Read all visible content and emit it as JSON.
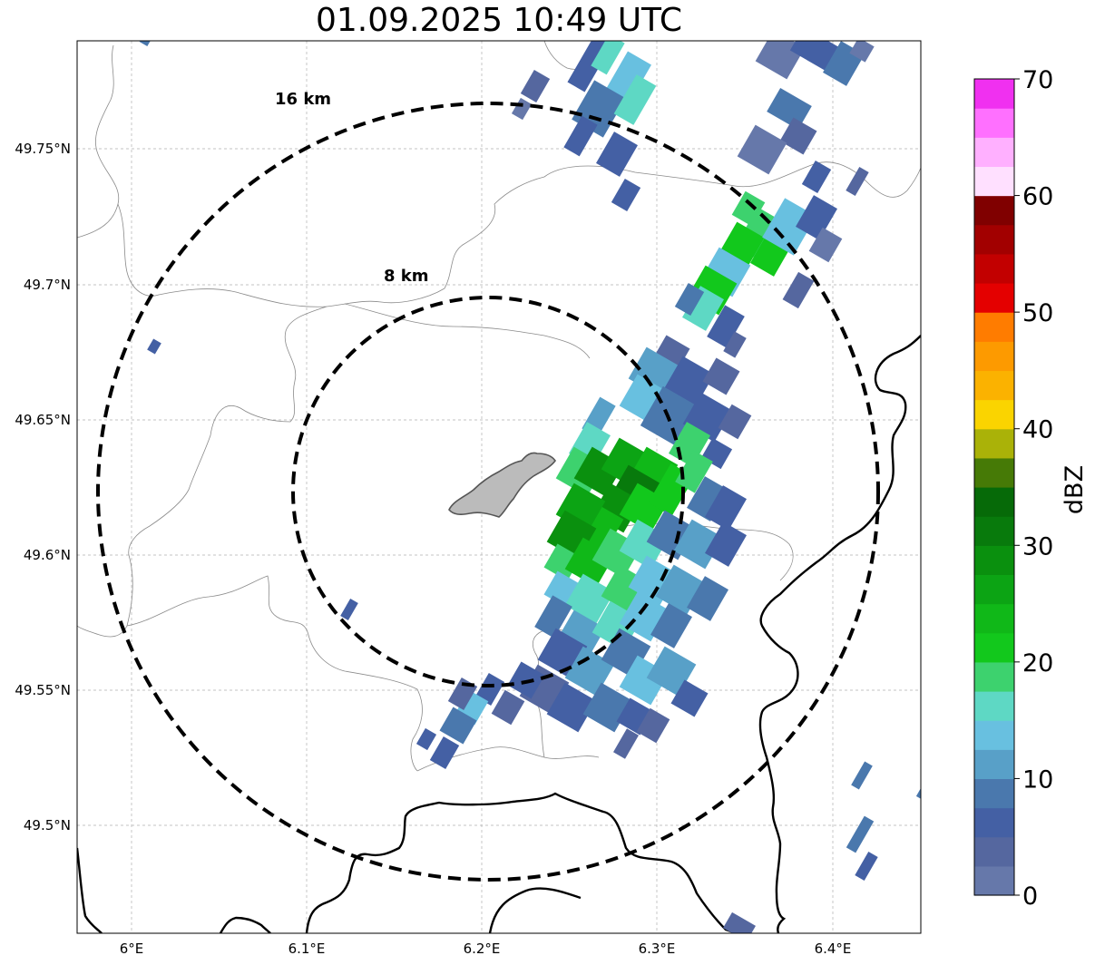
{
  "title": "01.09.2025 10:49 UTC",
  "map": {
    "lon_ticks": [
      "6°E",
      "6.1°E",
      "6.2°E",
      "6.3°E",
      "6.4°E"
    ],
    "lat_ticks": [
      "49.75°N",
      "49.7°N",
      "49.65°N",
      "49.6°N",
      "49.55°N",
      "49.5°N"
    ],
    "rings": [
      {
        "label": "16 km",
        "radius_km": 16
      },
      {
        "label": "8 km",
        "radius_km": 8
      }
    ],
    "grid": true,
    "colors": {
      "border": "#000000",
      "admin": "#8a8a8a",
      "city": "#bbbbbb",
      "grid": "#b0b0b0"
    }
  },
  "colorbar": {
    "title": "dBZ",
    "ticks": [
      "0",
      "10",
      "20",
      "30",
      "40",
      "50",
      "60",
      "70"
    ],
    "colors": [
      "#6678aa",
      "#55679f",
      "#4460a4",
      "#4a78ad",
      "#58a0c8",
      "#68c0e0",
      "#5ed8c4",
      "#3dd26e",
      "#12c81c",
      "#10b818",
      "#0ca414",
      "#0a900e",
      "#087a0c",
      "#066a08",
      "#467a06",
      "#aab208",
      "#fad400",
      "#fbb200",
      "#fd9a00",
      "#ff7c00",
      "#e40000",
      "#c20000",
      "#a20000",
      "#800000",
      "#ffe0ff",
      "#ffb0ff",
      "#ff70ff",
      "#f030f0"
    ]
  }
}
